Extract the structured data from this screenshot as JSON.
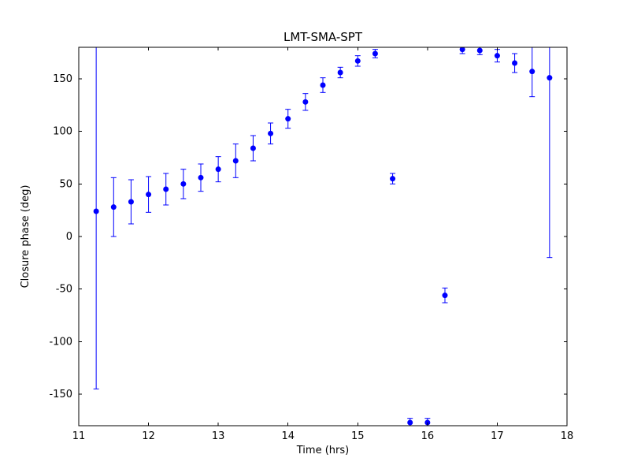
{
  "page": {
    "background": "#ffffff"
  },
  "chart_data": {
    "type": "scatter",
    "title": "LMT-SMA-SPT",
    "xlabel": "Time (hrs)",
    "ylabel": "Closure phase (deg)",
    "xlim": [
      11,
      18
    ],
    "ylim": [
      -180,
      180
    ],
    "xticks": [
      11,
      12,
      13,
      14,
      15,
      16,
      17,
      18
    ],
    "yticks": [
      -150,
      -100,
      -50,
      0,
      50,
      100,
      150
    ],
    "grid": false,
    "legend": null,
    "marker": "circle",
    "marker_color": "#0000ff",
    "errorbar_color": "#0000ff",
    "axis_color": "#000000",
    "series": [
      {
        "name": "LMT-SMA-SPT closure phase",
        "x": [
          11.25,
          11.5,
          11.75,
          12.0,
          12.25,
          12.5,
          12.75,
          13.0,
          13.25,
          13.5,
          13.75,
          14.0,
          14.25,
          14.5,
          14.75,
          15.0,
          15.25,
          15.5,
          15.75,
          16.0,
          16.25,
          16.5,
          16.75,
          17.0,
          17.25,
          17.5,
          17.75
        ],
        "y": [
          24,
          28,
          33,
          40,
          45,
          50,
          56,
          64,
          72,
          84,
          98,
          112,
          128,
          144,
          156,
          167,
          174,
          55,
          -177,
          -177,
          -56,
          178,
          177,
          172,
          165,
          157,
          151
        ],
        "yerr": [
          169,
          28,
          21,
          17,
          15,
          14,
          13,
          12,
          16,
          12,
          10,
          9,
          8,
          7,
          5,
          5,
          4,
          5,
          4,
          4,
          7,
          4,
          4,
          6,
          9,
          24,
          171
        ]
      }
    ]
  }
}
